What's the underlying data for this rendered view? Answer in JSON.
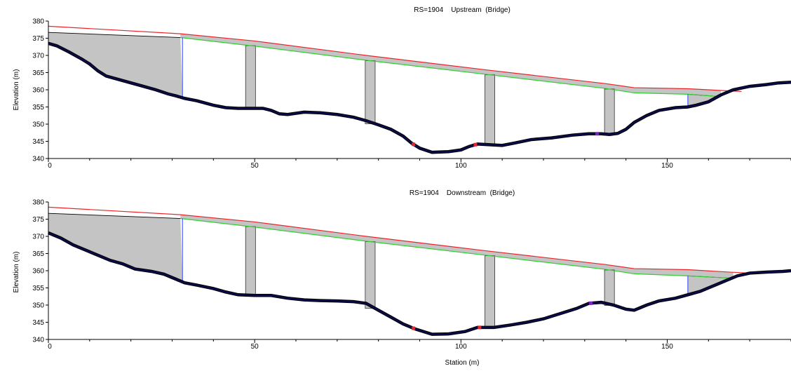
{
  "colors": {
    "deck_top": "#e8262a",
    "deck_bottom": "#30d030",
    "deck_fill": "#c4c4c4",
    "ground": "#0b0b4a",
    "ground_edge": "#000000",
    "ineffective_line": "#2040ff",
    "bank_marker": "#e8262a",
    "levee_marker": "#8020c0"
  },
  "chart_data": [
    {
      "type": "line",
      "title": "RS=1904    Upstream  (Bridge)",
      "xlabel": "",
      "ylabel": "Elevation (m)",
      "xlim": [
        0,
        180
      ],
      "ylim": [
        340,
        380
      ],
      "xticks": [
        0,
        50,
        100,
        150
      ],
      "yticks": [
        340,
        345,
        350,
        355,
        360,
        365,
        370,
        375,
        380
      ],
      "deck_top": [
        [
          0,
          378.5
        ],
        [
          32,
          376.3
        ],
        [
          50,
          374.2
        ],
        [
          77,
          370.0
        ],
        [
          106,
          365.8
        ],
        [
          135,
          361.8
        ],
        [
          142,
          360.6
        ],
        [
          155,
          360.3
        ],
        [
          163,
          359.8
        ],
        [
          168,
          359.5
        ]
      ],
      "deck_bottom": [
        [
          32,
          375.2
        ],
        [
          50,
          372.7
        ],
        [
          77,
          368.6
        ],
        [
          106,
          364.5
        ],
        [
          135,
          360.4
        ],
        [
          142,
          359.1
        ],
        [
          155,
          358.7
        ],
        [
          163,
          358.0
        ]
      ],
      "left_upper_chord": [
        [
          0,
          376.7
        ],
        [
          32,
          375.2
        ]
      ],
      "right_upper_chord": [
        [
          155,
          358.7
        ],
        [
          163,
          358.0
        ]
      ],
      "piers": [
        [
          47.8,
          50.2
        ],
        [
          76.8,
          79.2
        ],
        [
          105.8,
          108.2
        ],
        [
          134.8,
          137.2
        ]
      ],
      "ineffective_lines": [
        32.5,
        155
      ],
      "ground": [
        [
          0,
          373.5
        ],
        [
          2,
          372.8
        ],
        [
          5,
          371.0
        ],
        [
          8,
          369.0
        ],
        [
          10,
          367.5
        ],
        [
          12,
          365.5
        ],
        [
          14,
          364.0
        ],
        [
          17,
          363.0
        ],
        [
          20,
          362.0
        ],
        [
          23,
          361.0
        ],
        [
          26,
          360.0
        ],
        [
          29,
          358.8
        ],
        [
          31,
          358.2
        ],
        [
          33,
          357.5
        ],
        [
          36,
          356.8
        ],
        [
          40,
          355.5
        ],
        [
          43,
          354.8
        ],
        [
          46,
          354.6
        ],
        [
          52,
          354.6
        ],
        [
          54,
          354.0
        ],
        [
          56,
          353.0
        ],
        [
          58,
          352.8
        ],
        [
          62,
          353.5
        ],
        [
          66,
          353.3
        ],
        [
          70,
          352.8
        ],
        [
          74,
          352.0
        ],
        [
          77,
          351.0
        ],
        [
          80,
          349.8
        ],
        [
          83,
          348.5
        ],
        [
          86,
          346.5
        ],
        [
          88,
          344.5
        ],
        [
          90,
          343.0
        ],
        [
          93,
          341.8
        ],
        [
          97,
          342.0
        ],
        [
          100,
          342.5
        ],
        [
          102,
          343.5
        ],
        [
          104,
          344.2
        ],
        [
          107,
          344.0
        ],
        [
          110,
          343.8
        ],
        [
          113,
          344.5
        ],
        [
          117,
          345.5
        ],
        [
          122,
          346.0
        ],
        [
          127,
          346.8
        ],
        [
          131,
          347.2
        ],
        [
          134,
          347.2
        ],
        [
          136,
          347.0
        ],
        [
          138,
          347.3
        ],
        [
          140,
          348.5
        ],
        [
          142,
          350.5
        ],
        [
          145,
          352.5
        ],
        [
          148,
          354.0
        ],
        [
          152,
          354.8
        ],
        [
          155,
          355.0
        ],
        [
          157,
          355.5
        ],
        [
          160,
          356.5
        ],
        [
          163,
          358.5
        ],
        [
          166,
          360.0
        ],
        [
          170,
          361.0
        ],
        [
          174,
          361.5
        ],
        [
          177,
          362.0
        ],
        [
          180,
          362.2
        ]
      ],
      "bank_stations": [
        88.5,
        103.5
      ],
      "levee_stations": [
        133
      ]
    },
    {
      "type": "line",
      "title": "RS=1904    Downstream  (Bridge)",
      "xlabel": "Station (m)",
      "ylabel": "Elevation (m)",
      "xlim": [
        0,
        180
      ],
      "ylim": [
        340,
        380
      ],
      "xticks": [
        0,
        50,
        100,
        150
      ],
      "yticks": [
        340,
        345,
        350,
        355,
        360,
        365,
        370,
        375,
        380
      ],
      "deck_top": [
        [
          0,
          378.5
        ],
        [
          32,
          376.3
        ],
        [
          50,
          374.2
        ],
        [
          77,
          370.0
        ],
        [
          106,
          365.8
        ],
        [
          135,
          361.8
        ],
        [
          142,
          360.6
        ],
        [
          155,
          360.3
        ],
        [
          165,
          359.6
        ],
        [
          170,
          359.3
        ]
      ],
      "deck_bottom": [
        [
          32,
          375.2
        ],
        [
          50,
          372.7
        ],
        [
          77,
          368.6
        ],
        [
          106,
          364.5
        ],
        [
          135,
          360.4
        ],
        [
          142,
          359.1
        ],
        [
          155,
          358.5
        ],
        [
          166,
          357.8
        ]
      ],
      "left_upper_chord": [
        [
          0,
          376.7
        ],
        [
          32,
          375.2
        ]
      ],
      "right_upper_chord": [
        [
          155,
          358.5
        ],
        [
          166,
          357.8
        ]
      ],
      "piers": [
        [
          47.8,
          50.2
        ],
        [
          76.8,
          79.2
        ],
        [
          105.8,
          108.2
        ],
        [
          134.8,
          137.2
        ]
      ],
      "ineffective_lines": [
        32.5,
        155
      ],
      "ground": [
        [
          0,
          371.0
        ],
        [
          3,
          369.5
        ],
        [
          6,
          367.5
        ],
        [
          9,
          366.0
        ],
        [
          12,
          364.5
        ],
        [
          15,
          363.0
        ],
        [
          18,
          362.0
        ],
        [
          21,
          360.5
        ],
        [
          25,
          359.8
        ],
        [
          28,
          359.0
        ],
        [
          31,
          357.5
        ],
        [
          33,
          356.5
        ],
        [
          36,
          355.8
        ],
        [
          40,
          354.8
        ],
        [
          43,
          353.8
        ],
        [
          46,
          353.0
        ],
        [
          50,
          352.8
        ],
        [
          54,
          352.8
        ],
        [
          58,
          352.0
        ],
        [
          62,
          351.5
        ],
        [
          66,
          351.3
        ],
        [
          70,
          351.2
        ],
        [
          74,
          351.0
        ],
        [
          77,
          350.5
        ],
        [
          80,
          348.5
        ],
        [
          83,
          346.5
        ],
        [
          86,
          344.5
        ],
        [
          89,
          343.0
        ],
        [
          93,
          341.5
        ],
        [
          97,
          341.6
        ],
        [
          101,
          342.3
        ],
        [
          104,
          343.5
        ],
        [
          108,
          343.5
        ],
        [
          112,
          344.2
        ],
        [
          116,
          345.0
        ],
        [
          120,
          346.0
        ],
        [
          124,
          347.5
        ],
        [
          128,
          349.0
        ],
        [
          131,
          350.5
        ],
        [
          134,
          350.8
        ],
        [
          137,
          350.0
        ],
        [
          140,
          348.8
        ],
        [
          142,
          348.5
        ],
        [
          145,
          350.0
        ],
        [
          148,
          351.2
        ],
        [
          152,
          352.0
        ],
        [
          155,
          353.0
        ],
        [
          158,
          354.0
        ],
        [
          161,
          355.5
        ],
        [
          164,
          357.0
        ],
        [
          167,
          358.5
        ],
        [
          170,
          359.3
        ],
        [
          174,
          359.6
        ],
        [
          178,
          359.8
        ],
        [
          180,
          360.0
        ]
      ],
      "bank_stations": [
        88.5,
        104.5
      ],
      "levee_stations": [
        131.5
      ]
    }
  ]
}
